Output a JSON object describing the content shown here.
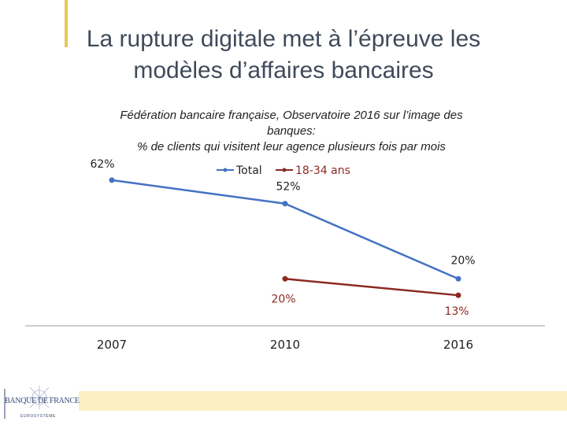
{
  "slide": {
    "title_line1": "La rupture digitale met à l’épreuve les",
    "title_line2": "modèles d’affaires bancaires"
  },
  "logo": {
    "name": "BANQUE DE FRANCE",
    "subtitle": "EUROSYSTÈME"
  },
  "colors": {
    "total": "#4472c4",
    "youth": "#8b2a22",
    "accent": "#e8c65a",
    "bottom_bar": "#fbf0c4"
  },
  "chart_data": {
    "type": "line",
    "title_line1": "Fédération bancaire française, Observatoire 2016 sur l’image des",
    "title_line2": "banques:",
    "title_line3": "% de clients qui visitent leur agence plusieurs fois par mois",
    "categories": [
      "2007",
      "2010",
      "2016"
    ],
    "ylim": [
      0,
      70
    ],
    "legend_position": "top",
    "series": [
      {
        "name": "Total",
        "values": [
          62,
          52,
          20
        ],
        "labels": [
          "62%",
          "52%",
          "20%"
        ]
      },
      {
        "name": "18-34 ans",
        "values": [
          null,
          20,
          13
        ],
        "labels": [
          "",
          "20%",
          "13%"
        ]
      }
    ]
  }
}
